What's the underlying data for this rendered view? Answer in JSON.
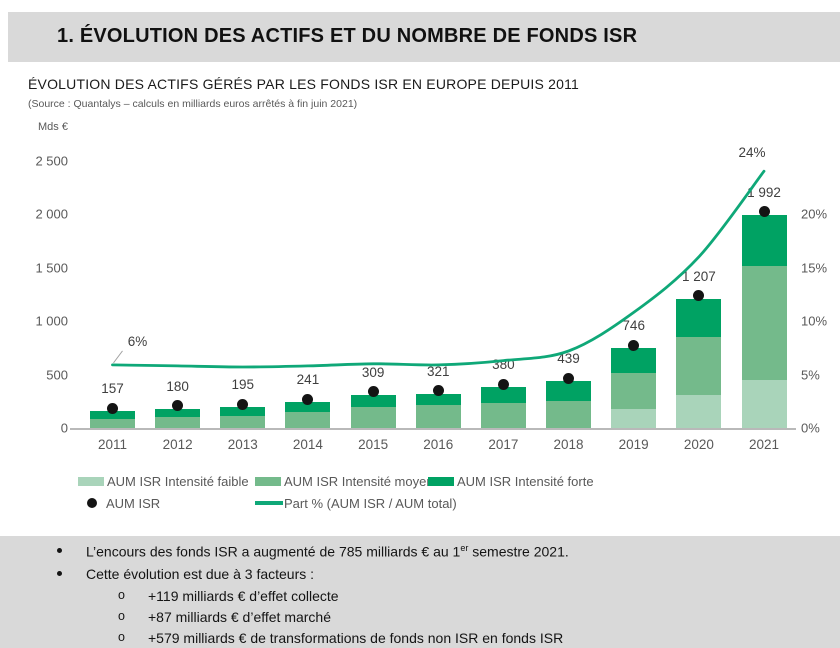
{
  "banner": {
    "title": "1. ÉVOLUTION DES ACTIFS ET DU NOMBRE DE FONDS ISR",
    "background": "#d9d9d9"
  },
  "chart_header": {
    "title": "ÉVOLUTION DES ACTIFS GÉRÉS PAR LES FONDS ISR EN EUROPE DEPUIS 2011",
    "source": "(Source : Quantalys – calculs en milliards euros arrêtés à fin juin 2021)",
    "unit": "Mds €"
  },
  "chart_data": {
    "type": "bar",
    "subtype": "stacked-bars-with-percentage-line",
    "title": "ÉVOLUTION DES ACTIFS GÉRÉS PAR LES FONDS ISR EN EUROPE DEPUIS 2011",
    "categories": [
      "2011",
      "2012",
      "2013",
      "2014",
      "2015",
      "2016",
      "2017",
      "2018",
      "2019",
      "2020",
      "2021"
    ],
    "series": [
      {
        "name": "AUM ISR Intensité faible",
        "color": "#a9d4ba",
        "values": [
          0,
          0,
          0,
          0,
          0,
          0,
          0,
          0,
          175,
          310,
          450
        ]
      },
      {
        "name": "AUM ISR Intensité moyenne",
        "color": "#74ba8b",
        "values": [
          80,
          100,
          110,
          145,
          200,
          215,
          230,
          250,
          335,
          540,
          1060
        ]
      },
      {
        "name": "AUM ISR Intensité forte",
        "color": "#00a263",
        "values": [
          77,
          80,
          85,
          96,
          109,
          106,
          150,
          189,
          236,
          357,
          482
        ]
      }
    ],
    "totals": {
      "name": "AUM ISR",
      "marker": "black-dot",
      "values": [
        157,
        180,
        195,
        241,
        309,
        321,
        380,
        439,
        746,
        1207,
        1992
      ],
      "labels": [
        "157",
        "180",
        "195",
        "241",
        "309",
        "321",
        "380",
        "439",
        "746",
        "1 207",
        "1 992"
      ]
    },
    "line": {
      "name": "Part % (AUM ISR / AUM total)",
      "color": "#0fa878",
      "values_pct": [
        5.9,
        5.8,
        5.7,
        5.8,
        6.0,
        5.9,
        6.3,
        7.2,
        10.8,
        16.0,
        24.0
      ],
      "first_point_label": "6%",
      "last_point_label": "24%"
    },
    "left_axis": {
      "unit": "Mds €",
      "range": [
        0,
        2500
      ],
      "ticks": [
        {
          "label": "2 500",
          "value": 2500
        },
        {
          "label": "2 000",
          "value": 2000
        },
        {
          "label": "1 500",
          "value": 1500
        },
        {
          "label": "1 000",
          "value": 1000
        },
        {
          "label": "500",
          "value": 500
        },
        {
          "label": "0",
          "value": 0
        }
      ]
    },
    "right_axis": {
      "range": [
        0,
        25
      ],
      "ticks": [
        {
          "label": "20%",
          "value": 20
        },
        {
          "label": "15%",
          "value": 15
        },
        {
          "label": "10%",
          "value": 10
        },
        {
          "label": "5%",
          "value": 5
        },
        {
          "label": "0%",
          "value": 0
        }
      ]
    },
    "grid": false,
    "legend_position": "bottom"
  },
  "legend": {
    "row1": [
      {
        "label": "AUM ISR Intensité faible",
        "swatch_color": "#a9d4ba"
      },
      {
        "label": "AUM ISR Intensité moyenne",
        "swatch_color": "#74ba8b"
      },
      {
        "label": "AUM ISR Intensité forte",
        "swatch_color": "#00a263"
      }
    ],
    "row2": [
      {
        "label": "AUM ISR",
        "marker": "black-dot"
      },
      {
        "label": "Part % (AUM ISR / AUM total)",
        "marker": "green-line",
        "color": "#0fa878"
      }
    ]
  },
  "notes": {
    "background": "#d9d9d9",
    "bullet1": {
      "before_sup": "L’encours des fonds ISR a augmenté de 785 milliards € au 1",
      "sup": "er",
      "after_sup": " semestre 2021."
    },
    "bullet2": "Cette évolution est due à 3 facteurs :",
    "sub_bullet_marker": "o",
    "sub_bullets": [
      "+119 milliards € d’effet collecte",
      "+87 milliards € d’effet marché",
      "+579 milliards € de transformations de fonds non ISR en fonds ISR"
    ]
  }
}
